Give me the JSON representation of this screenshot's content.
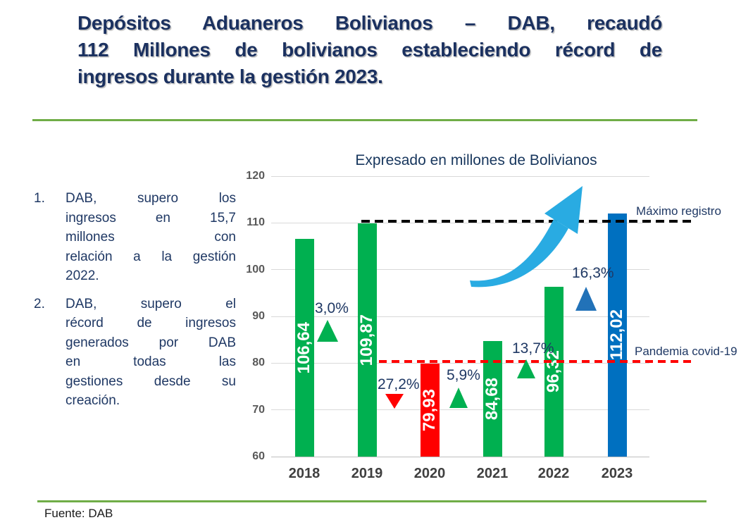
{
  "header": {
    "title_lines": [
      "Depósitos Aduaneros Bolivianos – DAB, recaudó",
      "112 Millones de bolivianos estableciendo récord de",
      "ingresos durante la gestión 2023."
    ]
  },
  "notes": {
    "items": [
      {
        "number": "1.",
        "lines": [
          "DAB, supero los",
          "ingresos en 15,7",
          "millones con",
          "relación a la gestión",
          "2022."
        ]
      },
      {
        "number": "2.",
        "lines": [
          "DAB, supero el",
          "récord de ingresos",
          "generados por DAB",
          "en todas las",
          "gestiones desde su",
          "creación."
        ]
      }
    ]
  },
  "chart_data": {
    "type": "bar",
    "title": "Expresado en millones de Bolivianos",
    "categories": [
      "2018",
      "2019",
      "2020",
      "2021",
      "2022",
      "2023"
    ],
    "values": [
      106.64,
      109.87,
      79.93,
      84.68,
      96.32,
      112.02
    ],
    "value_labels": [
      "106,64",
      "109,87",
      "79,93",
      "84,68",
      "96,32",
      "112,02"
    ],
    "bar_colors": [
      "#00B050",
      "#00B050",
      "#FF0000",
      "#00B050",
      "#00B050",
      "#0070C0"
    ],
    "ylim": [
      60,
      120
    ],
    "yticks": [
      120,
      110,
      100,
      90,
      80,
      70,
      60
    ],
    "grid": true,
    "legend": false,
    "pct_changes": [
      {
        "label": "3,0%",
        "direction": "up",
        "color": "#00B050"
      },
      {
        "label": "27,2%",
        "direction": "down",
        "color": "#FF0000"
      },
      {
        "label": "5,9%",
        "direction": "up",
        "color": "#00B050"
      },
      {
        "label": "13,7%",
        "direction": "up",
        "color": "#00B050"
      },
      {
        "label": "16,3%",
        "direction": "up",
        "color": "#2272B8"
      }
    ],
    "reference_lines": [
      {
        "label": "Máximo registro",
        "value": 110.4,
        "style": "dashed",
        "color": "#000000"
      },
      {
        "label": "Pandemia covid-19",
        "value": 80.4,
        "style": "dashed",
        "color": "#FF0000"
      }
    ],
    "trend_arrow": {
      "icon": "curved-up-arrow",
      "color": "#29ABE2"
    }
  },
  "footer": {
    "source": "Fuente: DAB"
  },
  "colors": {
    "accent_green": "#70AD47",
    "navy": "#1F3864"
  }
}
